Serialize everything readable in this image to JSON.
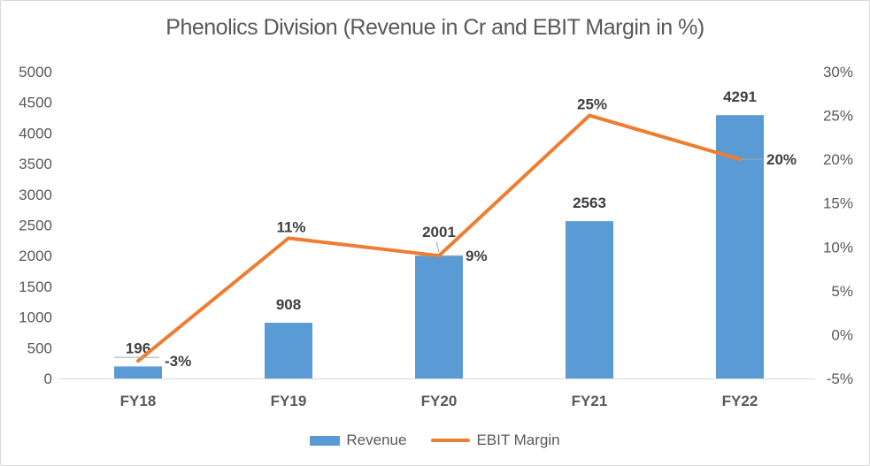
{
  "title": "Phenolics Division (Revenue in Cr and EBIT Margin in %)",
  "chart_data": {
    "type": "combo",
    "subtypes": [
      "bar",
      "line"
    ],
    "title": "Phenolics Division (Revenue in Cr and EBIT Margin in %)",
    "categories": [
      "FY18",
      "FY19",
      "FY20",
      "FY21",
      "FY22"
    ],
    "series": [
      {
        "name": "Revenue",
        "type": "bar",
        "axis": "left",
        "values": [
          196,
          908,
          2001,
          2563,
          4291
        ],
        "data_labels": [
          "196",
          "908",
          "2001",
          "2563",
          "4291"
        ],
        "color": "#5B9BD5"
      },
      {
        "name": "EBIT Margin",
        "type": "line",
        "axis": "right",
        "values": [
          -3,
          11,
          9,
          25,
          20
        ],
        "data_labels": [
          "-3%",
          "11%",
          "9%",
          "25%",
          "20%"
        ],
        "color": "#ED7D31"
      }
    ],
    "left_axis": {
      "min": 0,
      "max": 5000,
      "step": 500,
      "tick_labels": [
        "0",
        "500",
        "1000",
        "1500",
        "2000",
        "2500",
        "3000",
        "3500",
        "4000",
        "4500",
        "5000"
      ]
    },
    "right_axis": {
      "min": -5,
      "max": 30,
      "step": 5,
      "suffix": "%",
      "tick_labels": [
        "-5%",
        "0%",
        "5%",
        "10%",
        "15%",
        "20%",
        "25%",
        "30%"
      ]
    },
    "grid": false,
    "legend_position": "bottom"
  },
  "colors": {
    "bar": "#5B9BD5",
    "line": "#ED7D31",
    "title_text": "#595959",
    "axis_text": "#595959",
    "data_label_text": "#404040",
    "axis_line": "#D9D9D9",
    "leader_line": "#A6A6A6",
    "border": "#D9D9D9",
    "background": "#FFFFFF"
  }
}
